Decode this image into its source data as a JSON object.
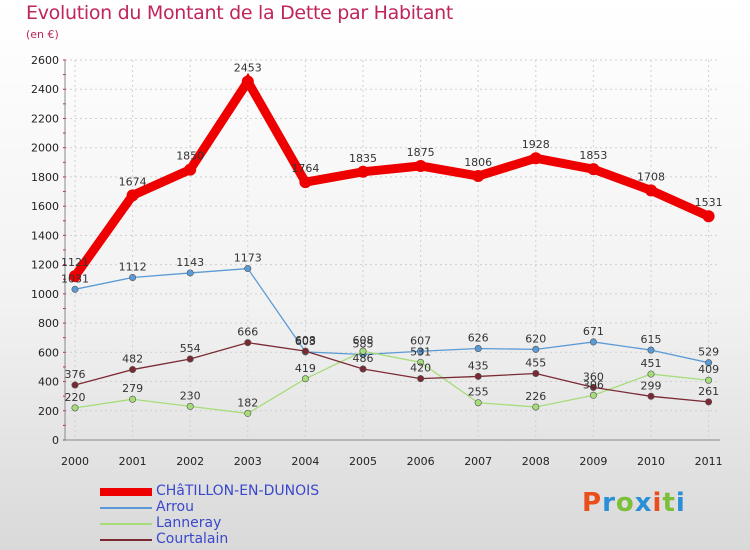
{
  "title": "Evolution du Montant de la Dette par Habitant",
  "subtitle": "(en €)",
  "logo": {
    "text": "Proxiti",
    "colors": [
      "#e94e1b",
      "#2a8fd6",
      "#7bbf3a",
      "#2a8fd6",
      "#e94e1b",
      "#7bbf3a",
      "#2a8fd6"
    ]
  },
  "chart_data": {
    "type": "line",
    "x": [
      "2000",
      "2001",
      "2002",
      "2003",
      "2004",
      "2005",
      "2006",
      "2007",
      "2008",
      "2009",
      "2010",
      "2011"
    ],
    "ylim": [
      0,
      2600
    ],
    "yticks": [
      0,
      200,
      400,
      600,
      800,
      1000,
      1200,
      1400,
      1600,
      1800,
      2000,
      2200,
      2400,
      2600
    ],
    "grid": true,
    "legend_position": "bottom-left",
    "series": [
      {
        "name": "CHâTILLON-EN-DUNOIS",
        "color": "#ee0000",
        "emphasis": true,
        "values": [
          1121,
          1674,
          1850,
          2453,
          1764,
          1835,
          1875,
          1806,
          1928,
          1853,
          1708,
          1531
        ]
      },
      {
        "name": "Arrou",
        "color": "#5b9bd5",
        "values": [
          1031,
          1112,
          1143,
          1173,
          603,
          585,
          607,
          626,
          620,
          671,
          615,
          529
        ]
      },
      {
        "name": "Lanneray",
        "color": "#a6dc7a",
        "values": [
          220,
          279,
          230,
          182,
          419,
          608,
          531,
          255,
          226,
          306,
          451,
          409
        ]
      },
      {
        "name": "Courtalain",
        "color": "#7a2a33",
        "values": [
          376,
          482,
          554,
          666,
          608,
          486,
          420,
          435,
          455,
          360,
          299,
          261
        ]
      }
    ]
  }
}
